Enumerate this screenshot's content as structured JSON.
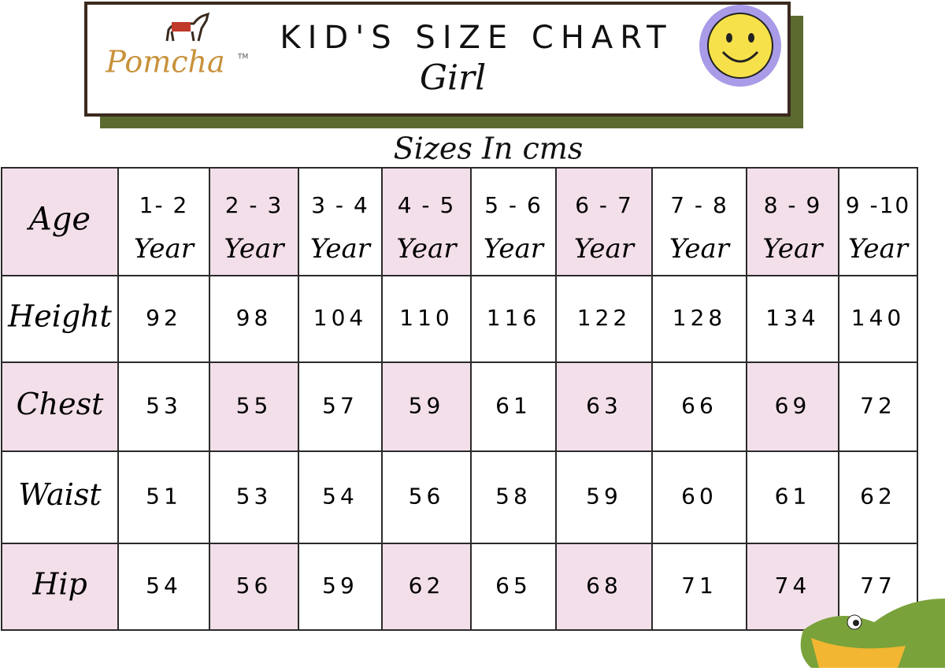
{
  "header": {
    "brand": "Pomcha",
    "trademark": "TM",
    "title": "KID'S SIZE CHART",
    "subtitle": "Girl"
  },
  "caption": "Sizes In cms",
  "table": {
    "corner": "Age",
    "columns": [
      {
        "range": "1- 2",
        "unit": "Year"
      },
      {
        "range": "2 - 3",
        "unit": "Year"
      },
      {
        "range": "3 - 4",
        "unit": "Year"
      },
      {
        "range": "4 - 5",
        "unit": "Year"
      },
      {
        "range": "5 - 6",
        "unit": "Year"
      },
      {
        "range": "6 - 7",
        "unit": "Year"
      },
      {
        "range": "7 - 8",
        "unit": "Year"
      },
      {
        "range": "8 - 9",
        "unit": "Year"
      },
      {
        "range": "9 -10",
        "unit": "Year"
      }
    ],
    "rows": [
      {
        "label": "Height",
        "values": [
          92,
          98,
          104,
          110,
          116,
          122,
          128,
          134,
          140
        ]
      },
      {
        "label": "Chest",
        "values": [
          53,
          55,
          57,
          59,
          61,
          63,
          66,
          69,
          72
        ]
      },
      {
        "label": "Waist",
        "values": [
          51,
          53,
          54,
          56,
          58,
          59,
          60,
          61,
          62
        ]
      },
      {
        "label": "Hip",
        "values": [
          54,
          56,
          59,
          62,
          65,
          68,
          71,
          74,
          77
        ]
      }
    ]
  }
}
